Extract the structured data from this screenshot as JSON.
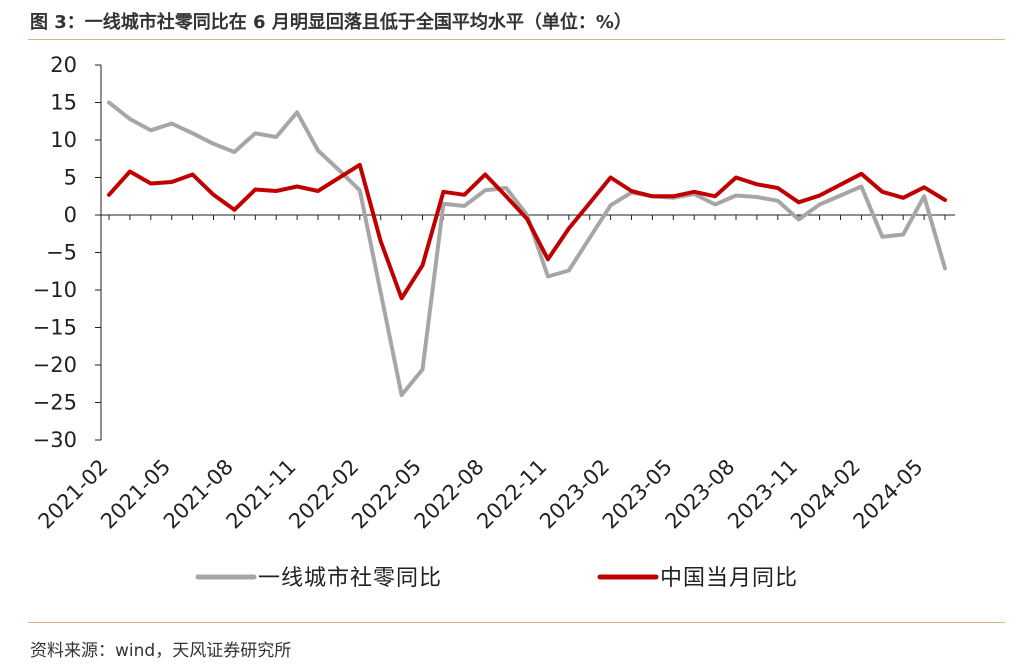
{
  "title": "图 3：一线城市社零同比在 6 月明显回落且低于全国平均水平（单位：%）",
  "source": "资料来源：wind，天风证券研究所",
  "chart_data": {
    "type": "line",
    "x": [
      "2021-02",
      "2021-03",
      "2021-04",
      "2021-05",
      "2021-06",
      "2021-07",
      "2021-08",
      "2021-09",
      "2021-10",
      "2021-11",
      "2021-12",
      "2022-01",
      "2022-02",
      "2022-03",
      "2022-04",
      "2022-05",
      "2022-06",
      "2022-07",
      "2022-08",
      "2022-09",
      "2022-10",
      "2022-11",
      "2022-12",
      "2023-01",
      "2023-02",
      "2023-03",
      "2023-04",
      "2023-05",
      "2023-06",
      "2023-07",
      "2023-08",
      "2023-09",
      "2023-10",
      "2023-11",
      "2023-12",
      "2024-01",
      "2024-02",
      "2024-03",
      "2024-04",
      "2024-05",
      "2024-06"
    ],
    "x_tick_labels": [
      "2021-02",
      "2021-05",
      "2021-08",
      "2021-11",
      "2022-02",
      "2022-05",
      "2022-08",
      "2022-11",
      "2023-02",
      "2023-05",
      "2023-08",
      "2023-11",
      "2024-02",
      "2024-05"
    ],
    "y_ticks": [
      20,
      15,
      10,
      5,
      0,
      -5,
      -10,
      -15,
      -20,
      -25,
      -30
    ],
    "ylim": [
      -30,
      20
    ],
    "series": [
      {
        "name": "一线城市社零同比",
        "color": "#a6a6a6",
        "values": [
          15.0,
          12.8,
          11.3,
          12.2,
          10.9,
          9.5,
          8.4,
          10.9,
          10.4,
          13.7,
          8.6,
          6.0,
          3.3,
          null,
          -24.0,
          -20.6,
          1.5,
          1.2,
          3.3,
          3.6,
          0.0,
          -8.2,
          -7.4,
          null,
          1.3,
          3.0,
          2.5,
          2.3,
          2.8,
          1.4,
          2.6,
          2.4,
          1.9,
          -0.6,
          1.4,
          null,
          3.8,
          -2.9,
          -2.6,
          2.5,
          -7.1
        ]
      },
      {
        "name": "中国当月同比",
        "color": "#c00000",
        "values": [
          2.7,
          5.8,
          4.2,
          4.4,
          5.4,
          2.7,
          0.7,
          3.4,
          3.2,
          3.8,
          3.2,
          null,
          6.7,
          -3.5,
          -11.1,
          -6.7,
          3.1,
          2.7,
          5.4,
          2.5,
          -0.5,
          -5.9,
          -1.8,
          null,
          5.0,
          3.2,
          2.5,
          2.5,
          3.1,
          2.5,
          5.0,
          4.1,
          3.6,
          1.7,
          2.6,
          null,
          5.5,
          3.1,
          2.3,
          3.7,
          2.0
        ]
      }
    ],
    "grid": false,
    "legend": "bottom"
  }
}
